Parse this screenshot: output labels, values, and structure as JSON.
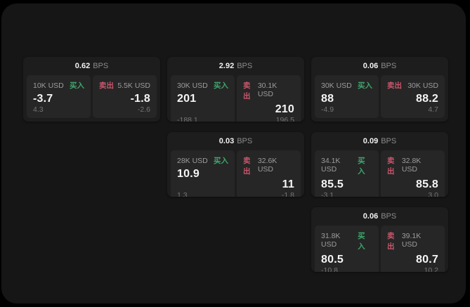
{
  "labels": {
    "bps_suffix": "BPS",
    "buy": "买入",
    "sell": "卖出"
  },
  "colors": {
    "background": "#000000",
    "surface": "#161616",
    "card": "#1d1d1d",
    "panel": "#262626",
    "buy_green": "#3fa66c",
    "sell_red": "#c9566b"
  },
  "cards": [
    {
      "bps": "0.62",
      "buy": {
        "amount": "10K USD",
        "value": "-3.7",
        "sub": "4.3"
      },
      "sell": {
        "amount": "5.5K USD",
        "value": "-1.8",
        "sub": "-2.6"
      }
    },
    {
      "bps": "2.92",
      "buy": {
        "amount": "30K USD",
        "value": "201",
        "sub": "-188.1"
      },
      "sell": {
        "amount": "30.1K USD",
        "value": "210",
        "sub": "196.5"
      }
    },
    {
      "bps": "0.06",
      "buy": {
        "amount": "30K USD",
        "value": "88",
        "sub": "-4.9"
      },
      "sell": {
        "amount": "30K USD",
        "value": "88.2",
        "sub": "4.7"
      }
    },
    {
      "bps": "0.03",
      "buy": {
        "amount": "28K USD",
        "value": "10.9",
        "sub": "1.3"
      },
      "sell": {
        "amount": "32.6K USD",
        "value": "11",
        "sub": "-1.8"
      }
    },
    {
      "bps": "0.09",
      "buy": {
        "amount": "34.1K USD",
        "value": "85.5",
        "sub": "-3.1"
      },
      "sell": {
        "amount": "32.8K USD",
        "value": "85.8",
        "sub": "3.0"
      }
    },
    {
      "bps": "0.06",
      "buy": {
        "amount": "31.8K USD",
        "value": "80.5",
        "sub": "-10.8"
      },
      "sell": {
        "amount": "39.1K USD",
        "value": "80.7",
        "sub": "10.2"
      }
    }
  ]
}
